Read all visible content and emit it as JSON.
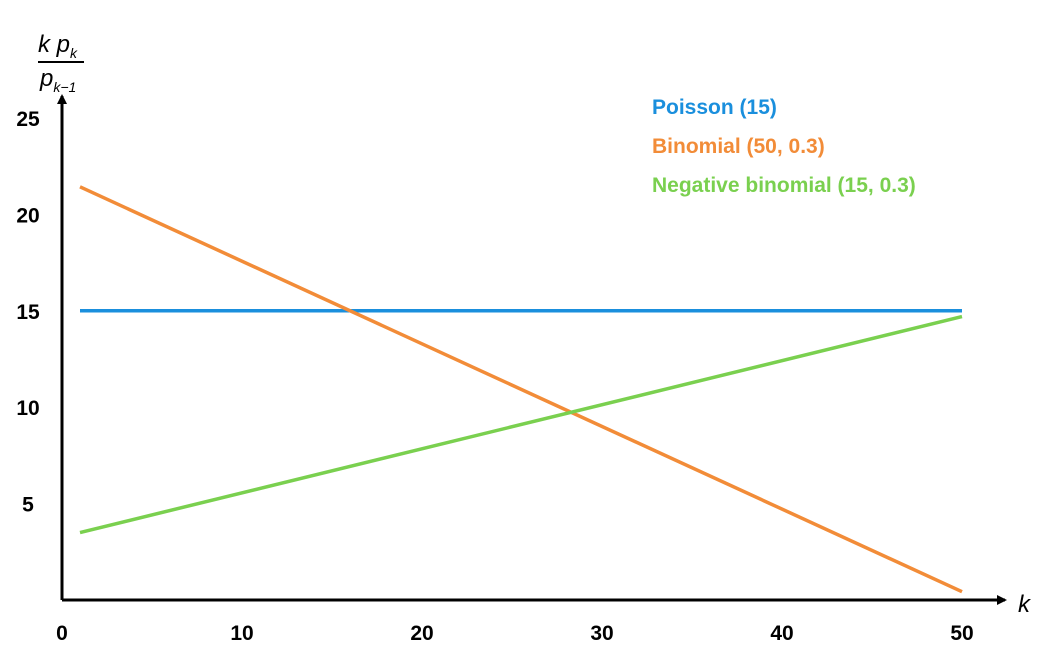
{
  "chart_data": {
    "type": "line",
    "xlabel": "k",
    "ylabel": {
      "numerator": "k p",
      "numerator_sub": "k",
      "denominator": "p",
      "denominator_sub": "k−1"
    },
    "xlim": [
      0,
      50
    ],
    "ylim": [
      0,
      25
    ],
    "xticks": [
      "0",
      "10",
      "20",
      "30",
      "40",
      "50"
    ],
    "yticks": [
      "5",
      "10",
      "15",
      "20",
      "25"
    ],
    "grid": false,
    "legend_position": "top-right",
    "series": [
      {
        "name": "Poisson (15)",
        "color": "#1a8fdd",
        "x": [
          1,
          50
        ],
        "y": [
          15,
          15
        ]
      },
      {
        "name": "Binomial (50, 0.3)",
        "color": "#f28c38",
        "x": [
          1,
          50
        ],
        "y": [
          21.43,
          0.43
        ]
      },
      {
        "name": "Negative binomial (15, 0.3)",
        "color": "#7ad04f",
        "x": [
          1,
          50
        ],
        "y": [
          3.5,
          14.7
        ]
      }
    ]
  }
}
